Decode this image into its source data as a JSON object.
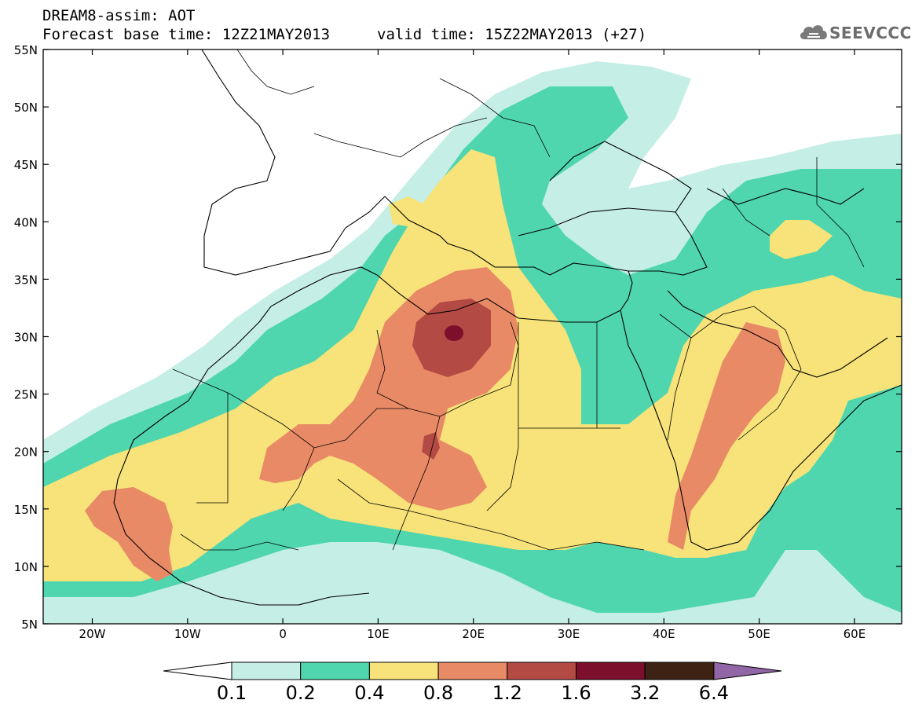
{
  "header": {
    "title": "DREAM8-assim: AOT",
    "base_time": "Forecast base time: 12Z21MAY2013",
    "valid_time": "valid time: 15Z22MAY2013 (+27)"
  },
  "logo": {
    "text": "SEEVCCC",
    "icon": "cloud-icon"
  },
  "axes": {
    "lat_labels": [
      "55N",
      "50N",
      "45N",
      "40N",
      "35N",
      "30N",
      "25N",
      "20N",
      "15N",
      "10N",
      "5N"
    ],
    "lon_labels": [
      "20W",
      "10W",
      "0",
      "10E",
      "20E",
      "30E",
      "40E",
      "50E",
      "60E"
    ]
  },
  "colorbar": {
    "labels": [
      "0.1",
      "0.2",
      "0.4",
      "0.8",
      "1.2",
      "1.6",
      "3.2",
      "6.4"
    ],
    "colors": [
      "#ffffff",
      "#c4eee6",
      "#4fd6ae",
      "#f7e379",
      "#e98a66",
      "#b34a43",
      "#7b0f2c",
      "#3e2213",
      "#9266a6"
    ]
  }
}
